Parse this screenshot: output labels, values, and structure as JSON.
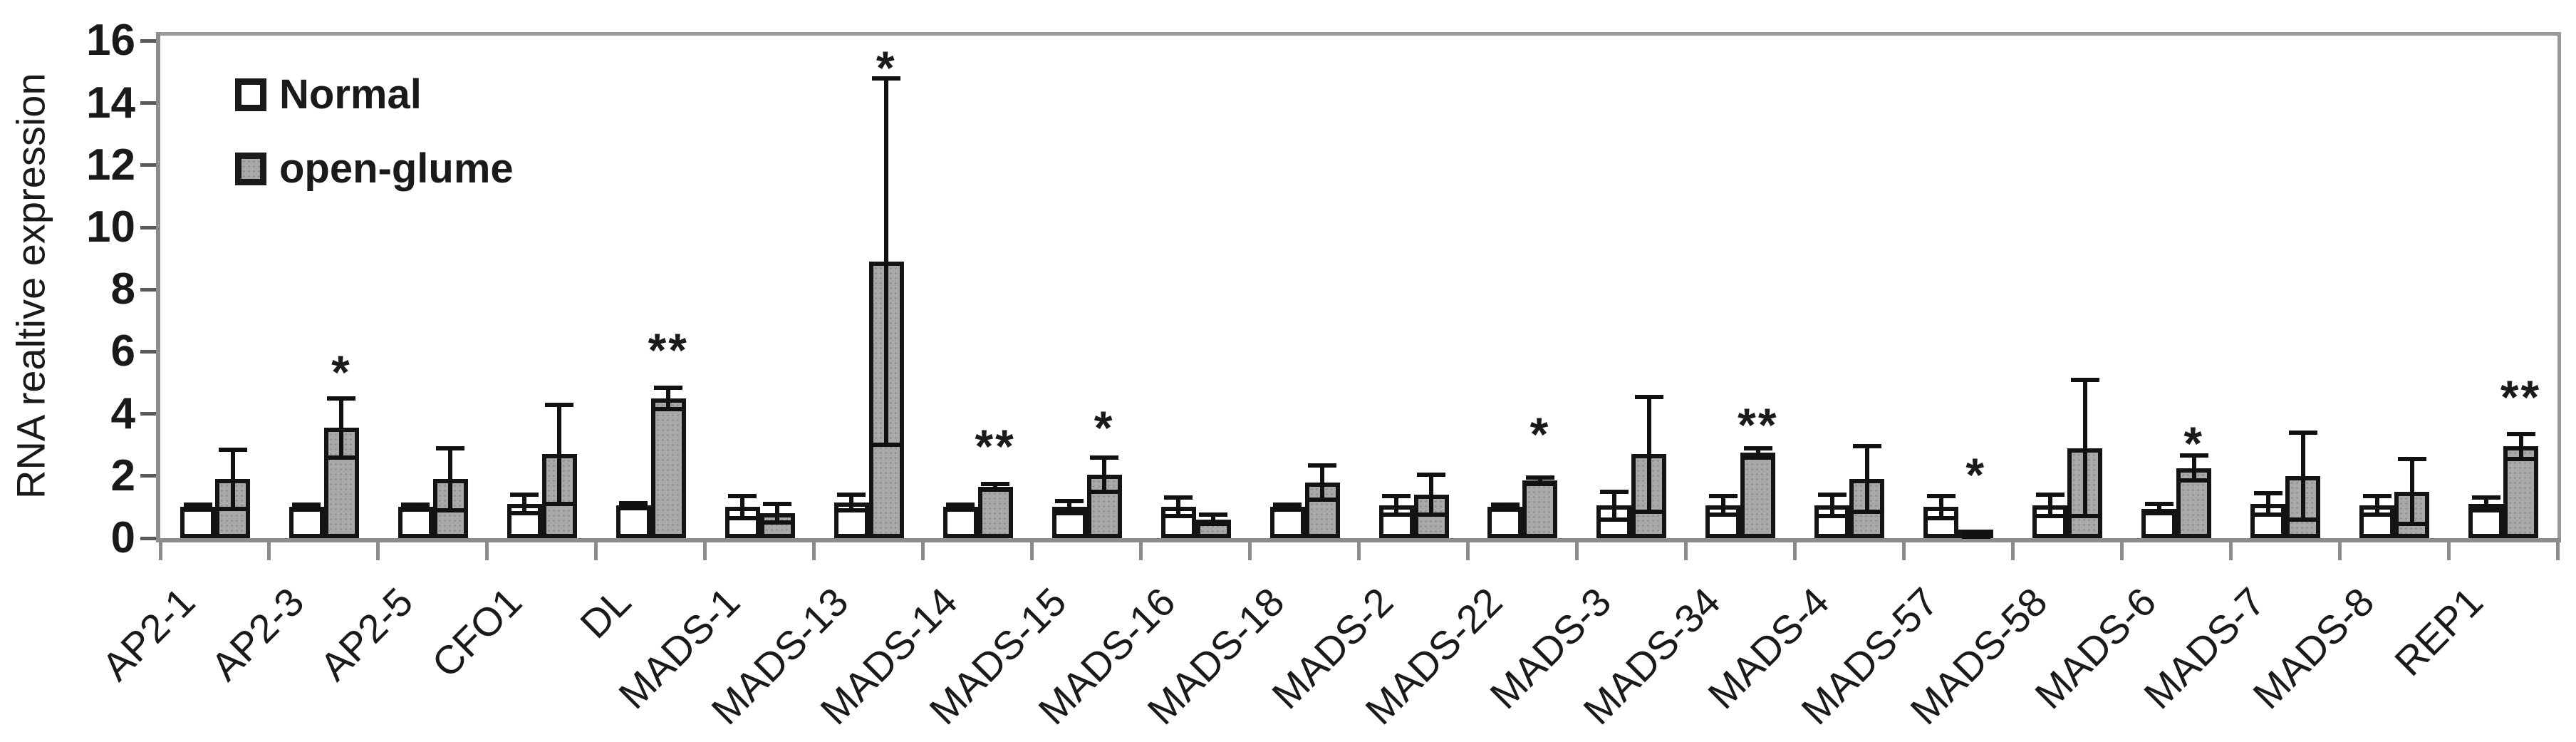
{
  "chart_data": {
    "type": "bar",
    "title": "",
    "xlabel": "",
    "ylabel": "RNA realtive expression",
    "ylim": [
      0,
      16
    ],
    "ytick_step": 2,
    "ytick_labels": [
      "0",
      "2",
      "4",
      "6",
      "8",
      "10",
      "12",
      "14",
      "16"
    ],
    "grid": false,
    "legend_position": "top-left-inside",
    "categories": [
      "AP2-1",
      "AP2-3",
      "AP2-5",
      "CFO1",
      "DL",
      "MADS-1",
      "MADS-13",
      "MADS-14",
      "MADS-15",
      "MADS-16",
      "MADS-18",
      "MADS-2",
      "MADS-22",
      "MADS-3",
      "MADS-34",
      "MADS-4",
      "MADS-57",
      "MADS-58",
      "MADS-6",
      "MADS-7",
      "MADS-8",
      "REP1"
    ],
    "series": [
      {
        "name": "Normal",
        "fill": "#ffffff",
        "values": [
          1.0,
          1.0,
          1.0,
          1.1,
          1.05,
          1.0,
          1.15,
          1.0,
          1.0,
          1.0,
          1.0,
          1.05,
          1.0,
          1.05,
          1.05,
          1.05,
          1.0,
          1.05,
          0.95,
          1.1,
          1.05,
          1.1
        ],
        "errors": [
          0.08,
          0.08,
          0.08,
          0.3,
          0.08,
          0.35,
          0.25,
          0.08,
          0.2,
          0.3,
          0.08,
          0.3,
          0.08,
          0.45,
          0.3,
          0.35,
          0.35,
          0.35,
          0.15,
          0.35,
          0.3,
          0.2
        ]
      },
      {
        "name": "open-glume",
        "fill": "#a9a9a9",
        "values": [
          1.9,
          3.55,
          1.9,
          2.7,
          4.5,
          0.8,
          8.9,
          1.65,
          2.05,
          0.6,
          1.8,
          1.4,
          1.85,
          2.7,
          2.75,
          1.9,
          0.1,
          2.9,
          2.25,
          2.0,
          1.5,
          2.95
        ],
        "errors": [
          0.95,
          0.95,
          1.0,
          1.6,
          0.35,
          0.3,
          5.9,
          0.1,
          0.55,
          0.15,
          0.55,
          0.65,
          0.1,
          1.85,
          0.15,
          1.05,
          0.05,
          2.2,
          0.4,
          1.4,
          1.05,
          0.4
        ]
      }
    ],
    "significance": {
      "labels": [
        "",
        "*",
        "",
        "",
        "**",
        "",
        "*",
        "**",
        "*",
        "",
        "",
        "",
        "*",
        "",
        "**",
        "",
        "*",
        "",
        "*",
        "",
        "",
        "**"
      ],
      "y": [
        null,
        5.6,
        null,
        null,
        6.3,
        null,
        15.4,
        3.2,
        3.8,
        null,
        null,
        null,
        3.6,
        null,
        3.9,
        null,
        2.3,
        null,
        3.3,
        null,
        null,
        4.8
      ]
    }
  },
  "colors": {
    "bar_border": "#141414",
    "normal_fill": "#ffffff",
    "open_glume_fill": "#a9a9a9",
    "axis": "#8c8c8c",
    "error_bar": "#111111",
    "text": "#1a1a1a"
  }
}
